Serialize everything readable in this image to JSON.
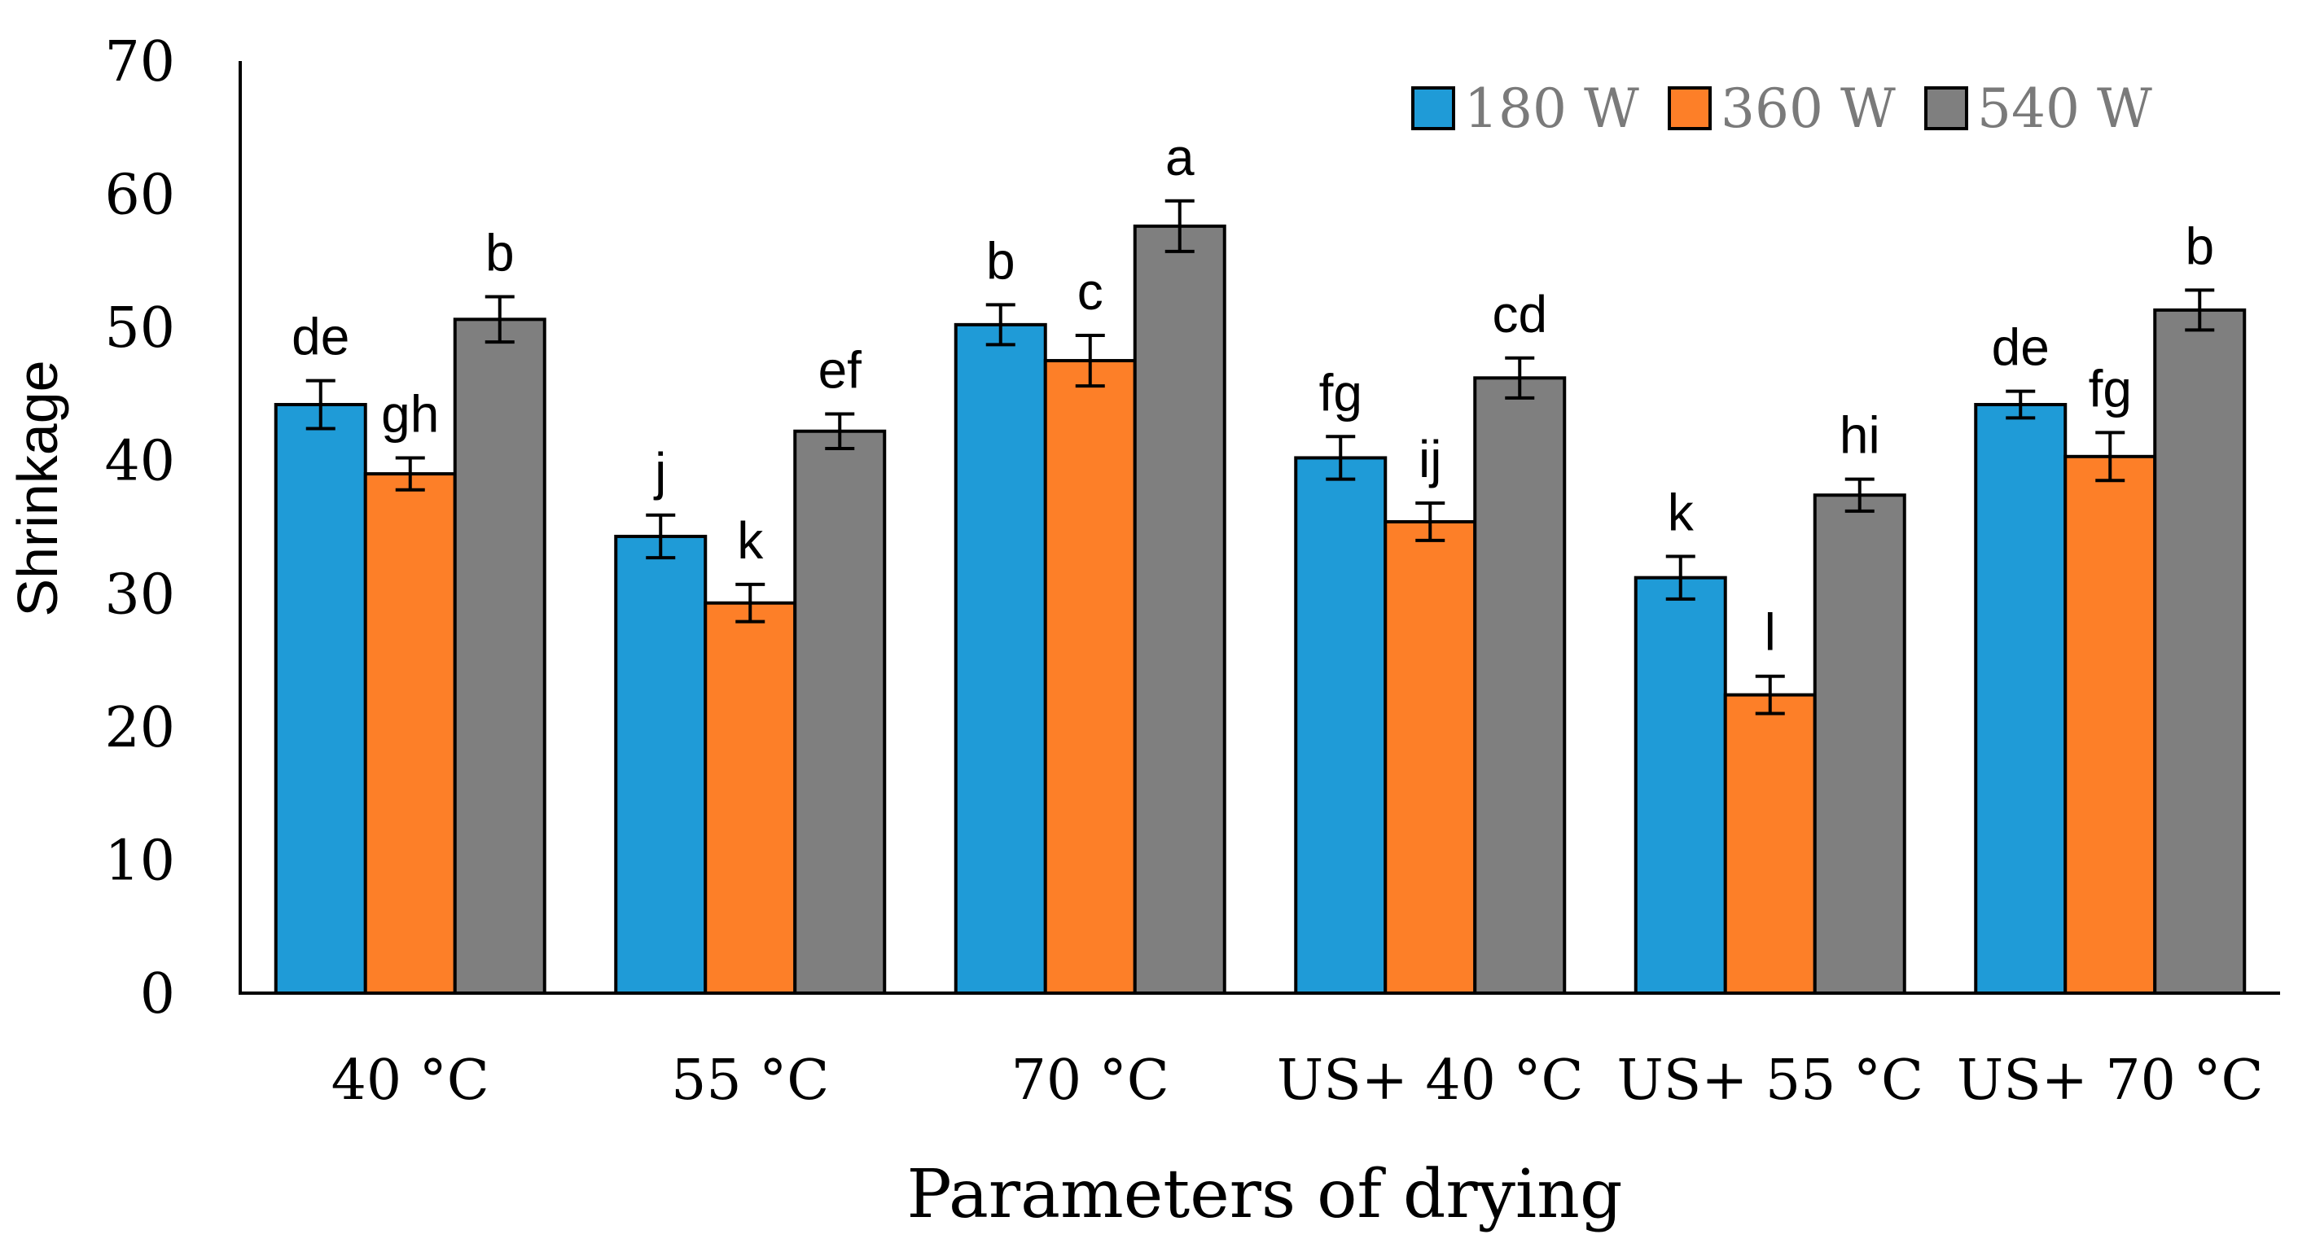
{
  "chart_data": {
    "type": "bar",
    "title": "",
    "xlabel": "Parameters of drying",
    "ylabel": "Shrinkage",
    "ylim": [
      0,
      70
    ],
    "yticks": [
      0,
      10,
      20,
      30,
      40,
      50,
      60,
      70
    ],
    "grid": false,
    "legend_position": "top-right",
    "categories": [
      "40 °C",
      "55 °C",
      "70 °C",
      "US+ 40 °C",
      "US+ 55 °C",
      "US+ 70 °C"
    ],
    "series": [
      {
        "name": "180 W",
        "color": "#1f9bd7",
        "values": [
          44.2,
          34.3,
          50.2,
          40.2,
          31.2,
          44.2
        ],
        "errors": [
          1.8,
          1.6,
          1.5,
          1.6,
          1.6,
          1.0
        ],
        "labels": [
          "de",
          "j",
          "b",
          "fg",
          "k",
          "de"
        ]
      },
      {
        "name": "360 W",
        "color": "#fd7f28",
        "values": [
          39.0,
          29.3,
          47.5,
          35.4,
          22.4,
          40.3
        ],
        "errors": [
          1.2,
          1.4,
          1.9,
          1.4,
          1.4,
          1.8
        ],
        "labels": [
          "gh",
          "k",
          "c",
          "ij",
          "l",
          "fg"
        ]
      },
      {
        "name": "540 W",
        "color": "#7f7f7f",
        "values": [
          50.6,
          42.2,
          57.6,
          46.2,
          37.4,
          51.3
        ],
        "errors": [
          1.7,
          1.3,
          1.9,
          1.5,
          1.2,
          1.5
        ],
        "labels": [
          "b",
          "ef",
          "a",
          "cd",
          "hi",
          "b"
        ]
      }
    ]
  }
}
